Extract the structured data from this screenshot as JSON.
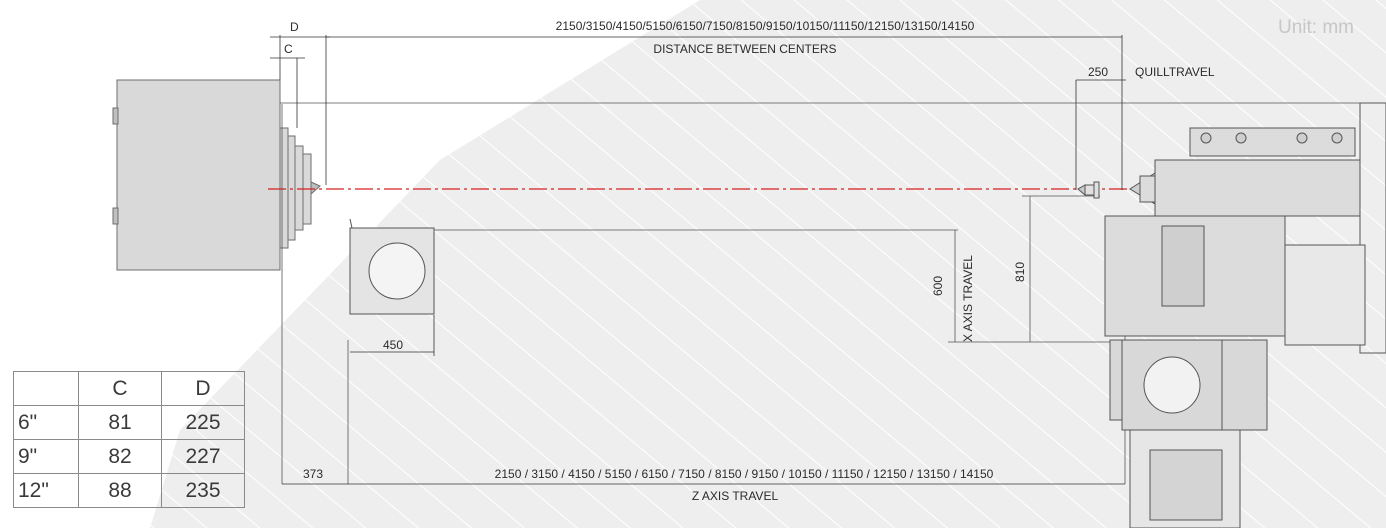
{
  "unit_label": "Unit: mm",
  "dimensions": {
    "d": "D",
    "c": "C",
    "distance_values": "2150/3150/4150/5150/6150/7150/8150/9150/10150/11150/12150/13150/14150",
    "distance_label": "DISTANCE BETWEEN CENTERS",
    "quill_value": "250",
    "quill_label": "QUILLTRAVEL",
    "x_travel_label": "X AXIS TRAVEL",
    "x_travel_600": "600",
    "x_travel_810": "810",
    "table_width": "450",
    "z_offset": "373",
    "z_values": "2150 / 3150 / 4150 / 5150 / 6150 / 7150 / 8150 / 9150 / 10150 / 11150 / 12150 / 13150 / 14150",
    "z_label": "Z AXIS TRAVEL"
  },
  "table": {
    "header": [
      "",
      "C",
      "D"
    ],
    "rows": [
      [
        "6\"",
        "81",
        "225"
      ],
      [
        "9\"",
        "82",
        "227"
      ],
      [
        "12\"",
        "88",
        "235"
      ]
    ]
  }
}
